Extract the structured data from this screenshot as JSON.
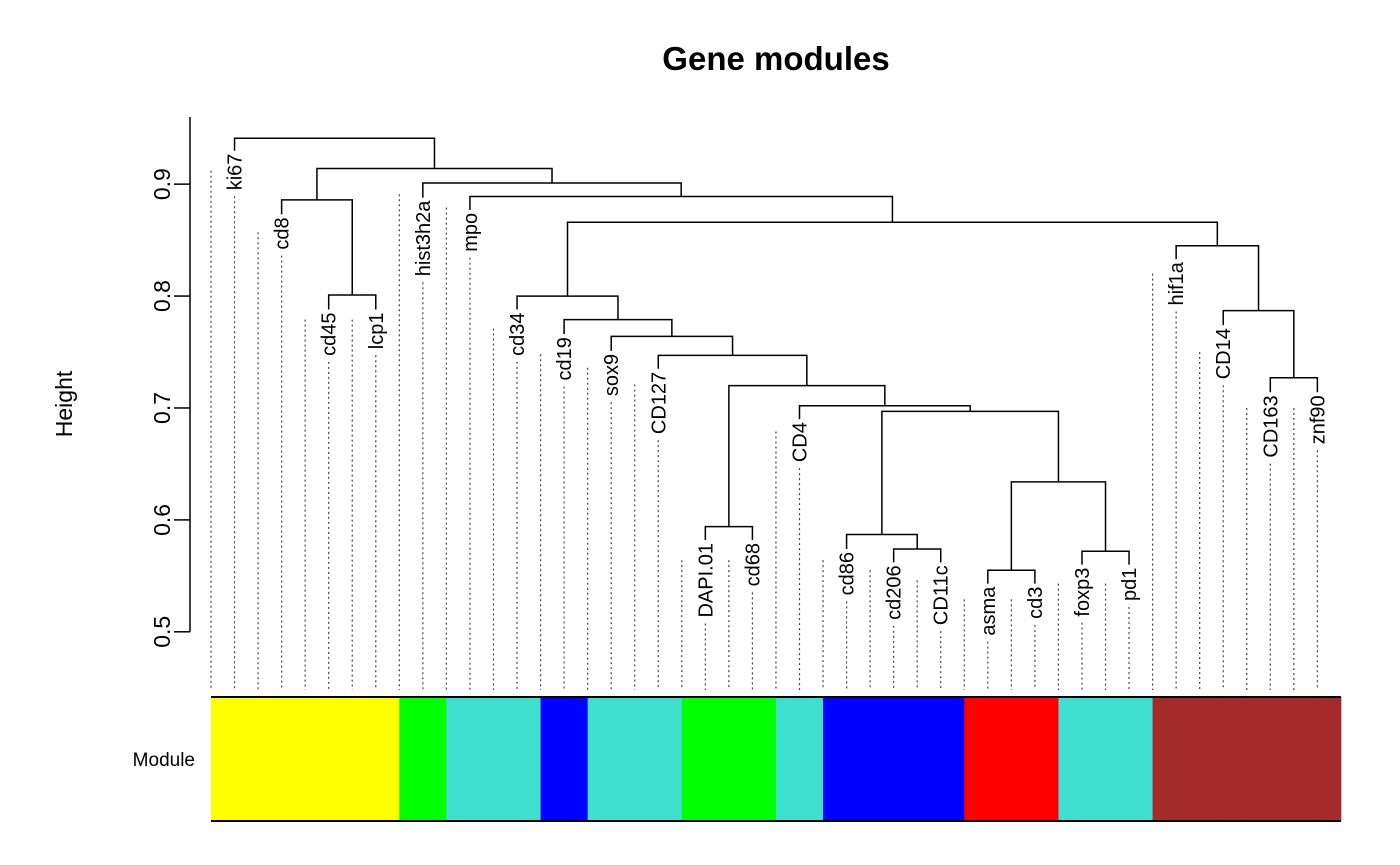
{
  "chart_data": {
    "type": "dendrogram",
    "title": "Gene modules",
    "y_label": "Height",
    "color_label": "Module",
    "ylim": [
      0.448,
      0.96
    ],
    "yticks": [
      0.5,
      0.6,
      0.7,
      0.8,
      0.9
    ],
    "leaves": [
      null,
      "ki67",
      null,
      "cd8",
      null,
      "cd45",
      null,
      "lcp1",
      null,
      "hist3h2a",
      null,
      "mpo",
      null,
      "cd34",
      null,
      "cd19",
      null,
      "sox9",
      null,
      "CD127",
      null,
      "DAPI.01",
      null,
      "cd68",
      null,
      "CD4",
      null,
      "cd86",
      null,
      "cd206",
      null,
      "CD11c",
      null,
      "asma",
      null,
      "cd3",
      null,
      "foxp3",
      null,
      "pd1",
      null,
      "hif1a",
      null,
      "CD14",
      null,
      "CD163",
      null,
      "znf90"
    ],
    "leaf_heights": [
      0.912,
      0.93,
      0.857,
      0.873,
      0.779,
      0.788,
      0.779,
      0.788,
      0.891,
      0.888,
      0.879,
      0.877,
      0.771,
      0.788,
      0.748,
      0.766,
      0.736,
      0.751,
      0.721,
      0.735,
      0.564,
      0.582,
      0.564,
      0.582,
      0.679,
      0.69,
      0.564,
      0.574,
      0.555,
      0.562,
      0.546,
      0.562,
      0.529,
      0.543,
      0.529,
      0.543,
      0.543,
      0.56,
      0.543,
      0.56,
      0.82,
      0.833,
      0.75,
      0.774,
      0.7,
      0.714,
      0.7,
      0.714
    ],
    "merges": [
      [
        5,
        7,
        0.801
      ],
      [
        3,
        -1,
        0.886
      ],
      [
        21,
        23,
        0.594
      ],
      [
        29,
        31,
        0.574
      ],
      [
        27,
        -4,
        0.587
      ],
      [
        33,
        35,
        0.555
      ],
      [
        37,
        39,
        0.572
      ],
      [
        -6,
        -7,
        0.634
      ],
      [
        -5,
        -8,
        0.697
      ],
      [
        25,
        -9,
        0.702
      ],
      [
        -3,
        -10,
        0.72
      ],
      [
        19,
        -11,
        0.747
      ],
      [
        17,
        -12,
        0.764
      ],
      [
        15,
        -13,
        0.779
      ],
      [
        13,
        -14,
        0.8
      ],
      [
        45,
        47,
        0.727
      ],
      [
        43,
        -16,
        0.787
      ],
      [
        41,
        -17,
        0.845
      ],
      [
        -15,
        -18,
        0.866
      ],
      [
        11,
        -19,
        0.889
      ],
      [
        9,
        -20,
        0.901
      ],
      [
        -2,
        -21,
        0.914
      ],
      [
        1,
        -22,
        0.941
      ]
    ],
    "module_colors": [
      "yellow",
      "yellow",
      "yellow",
      "yellow",
      "yellow",
      "yellow",
      "yellow",
      "yellow",
      "#00ff00",
      "#00ff00",
      "turquoise",
      "turquoise",
      "turquoise",
      "turquoise",
      "blue",
      "blue",
      "turquoise",
      "turquoise",
      "turquoise",
      "turquoise",
      "#00ff00",
      "#00ff00",
      "#00ff00",
      "#00ff00",
      "turquoise",
      "turquoise",
      "blue",
      "blue",
      "blue",
      "blue",
      "blue",
      "blue",
      "red",
      "red",
      "red",
      "red",
      "turquoise",
      "turquoise",
      "turquoise",
      "turquoise",
      "brown",
      "brown",
      "brown",
      "brown",
      "brown",
      "brown",
      "brown",
      "brown"
    ]
  }
}
